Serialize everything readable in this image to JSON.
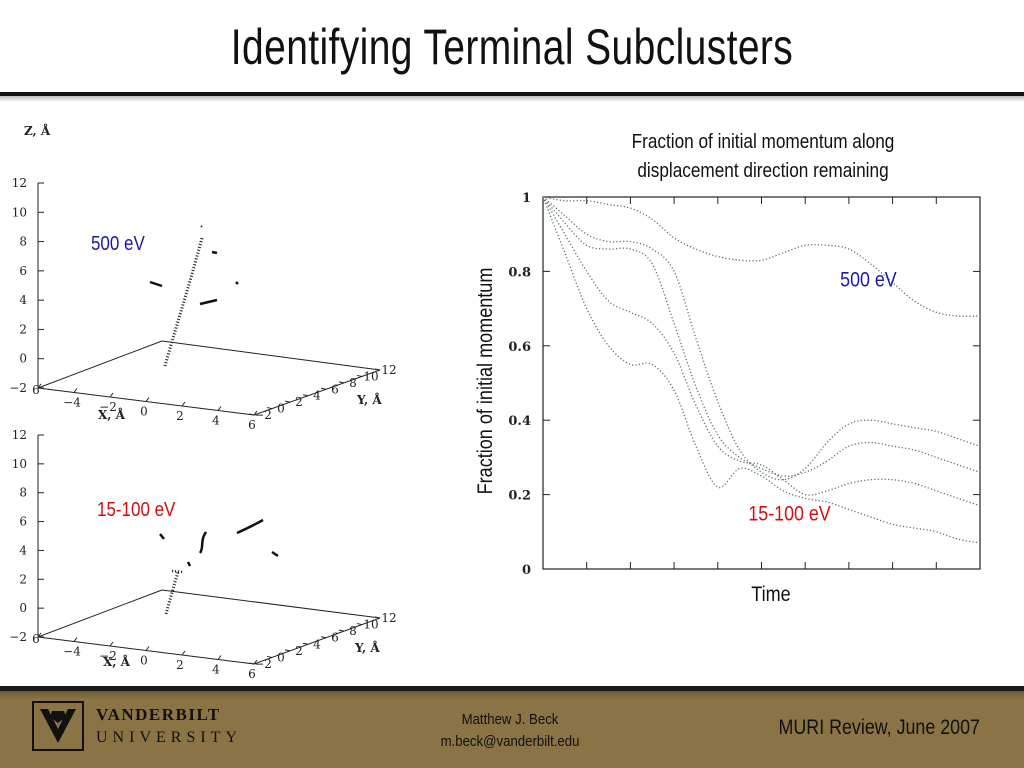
{
  "slide": {
    "title": "Identifying Terminal Subclusters"
  },
  "plot3d_top": {
    "energy_label": "500 eV",
    "energy_color": "#1a1aa8",
    "z_label": "Z, Å",
    "x_label": "X, Å",
    "y_label": "Y, Å",
    "z_ticks": [
      "12",
      "10",
      "8",
      "6",
      "4",
      "2",
      "0",
      "−2"
    ],
    "x_ticks": [
      "6",
      "−4",
      "−2",
      "0",
      "2",
      "4",
      "6"
    ],
    "y_ticks": [
      "−2",
      "0",
      "2",
      "4",
      "6",
      "8",
      "10",
      "12"
    ]
  },
  "plot3d_bottom": {
    "energy_label": "15-100 eV",
    "energy_color": "#d01010",
    "x_label": "X, Å",
    "y_label": "Y, Å",
    "z_ticks": [
      "12",
      "10",
      "8",
      "6",
      "4",
      "2",
      "0",
      "−2"
    ],
    "x_ticks": [
      "6",
      "−4",
      "−2",
      "0",
      "2",
      "4",
      "6"
    ],
    "y_ticks": [
      "−2",
      "0",
      "2",
      "4",
      "6",
      "8",
      "10",
      "12"
    ]
  },
  "chart_data": {
    "type": "line",
    "title": "Fraction of initial momentum along displacement direction remaining",
    "title_lines": [
      "Fraction of initial momentum along",
      "displacement direction remaining"
    ],
    "xlabel": "Time",
    "ylabel": "Fraction of initial momentum",
    "ylim": [
      0,
      1
    ],
    "xlim": [
      0,
      10
    ],
    "y_ticks": [
      "0",
      "0.2",
      "0.4",
      "0.6",
      "0.8",
      "1"
    ],
    "line_color": "#5c6b72",
    "line_style": "dotted",
    "annotations": [
      {
        "text": "500 eV",
        "color": "#1a1aa8",
        "x": 6.8,
        "y": 0.76
      },
      {
        "text": "15-100 eV",
        "color": "#d01010",
        "x": 4.7,
        "y": 0.13
      }
    ],
    "series": [
      {
        "x": [
          0,
          0.5,
          1.0,
          1.5,
          2.0,
          2.5,
          3.0,
          3.5,
          4.0,
          4.5,
          5.0,
          5.5,
          6.0,
          6.5,
          7.0,
          7.5,
          8.0,
          8.5,
          9.0,
          9.5,
          10.0
        ],
        "values": [
          1.0,
          0.99,
          0.99,
          0.98,
          0.97,
          0.94,
          0.89,
          0.86,
          0.84,
          0.83,
          0.83,
          0.85,
          0.87,
          0.87,
          0.86,
          0.82,
          0.77,
          0.72,
          0.69,
          0.68,
          0.68
        ]
      },
      {
        "x": [
          0,
          0.5,
          1.0,
          1.5,
          2.0,
          2.5,
          3.0,
          3.5,
          4.0,
          4.5,
          5.0,
          5.5,
          6.0,
          6.5,
          7.0,
          7.5,
          8.0,
          8.5,
          9.0,
          9.5,
          10.0
        ],
        "values": [
          1.0,
          0.95,
          0.9,
          0.88,
          0.88,
          0.86,
          0.8,
          0.62,
          0.45,
          0.32,
          0.26,
          0.24,
          0.27,
          0.34,
          0.39,
          0.4,
          0.39,
          0.38,
          0.37,
          0.35,
          0.33
        ]
      },
      {
        "x": [
          0,
          0.5,
          1.0,
          1.5,
          2.0,
          2.5,
          3.0,
          3.5,
          4.0,
          4.5,
          5.0,
          5.5,
          6.0,
          6.5,
          7.0,
          7.5,
          8.0,
          8.5,
          9.0,
          9.5,
          10.0
        ],
        "values": [
          1.0,
          0.93,
          0.87,
          0.86,
          0.86,
          0.82,
          0.66,
          0.49,
          0.36,
          0.3,
          0.27,
          0.25,
          0.26,
          0.29,
          0.33,
          0.34,
          0.33,
          0.32,
          0.3,
          0.28,
          0.26
        ]
      },
      {
        "x": [
          0,
          0.5,
          1.0,
          1.5,
          2.0,
          2.5,
          3.0,
          3.5,
          4.0,
          4.5,
          5.0,
          5.5,
          6.0,
          6.5,
          7.0,
          7.5,
          8.0,
          8.5,
          9.0,
          9.5,
          10.0
        ],
        "values": [
          1.0,
          0.9,
          0.8,
          0.72,
          0.69,
          0.66,
          0.58,
          0.44,
          0.33,
          0.29,
          0.28,
          0.24,
          0.2,
          0.21,
          0.23,
          0.24,
          0.24,
          0.23,
          0.21,
          0.19,
          0.17
        ]
      },
      {
        "x": [
          0,
          0.5,
          1.0,
          1.5,
          2.0,
          2.5,
          3.0,
          3.5,
          4.0,
          4.5,
          5.0,
          5.5,
          6.0,
          6.5,
          7.0,
          7.5,
          8.0,
          8.5,
          9.0,
          9.5,
          10.0
        ],
        "values": [
          1.0,
          0.85,
          0.7,
          0.6,
          0.55,
          0.55,
          0.48,
          0.33,
          0.22,
          0.27,
          0.25,
          0.21,
          0.19,
          0.18,
          0.16,
          0.14,
          0.12,
          0.11,
          0.1,
          0.08,
          0.07
        ]
      }
    ]
  },
  "footer": {
    "logo_line1": "VANDERBILT",
    "logo_line2": "UNIVERSITY",
    "author_name": "Matthew J. Beck",
    "author_email": "m.beck@vanderbilt.edu",
    "event": "MURI Review, June 2007",
    "bar_color": "#8a7446"
  }
}
